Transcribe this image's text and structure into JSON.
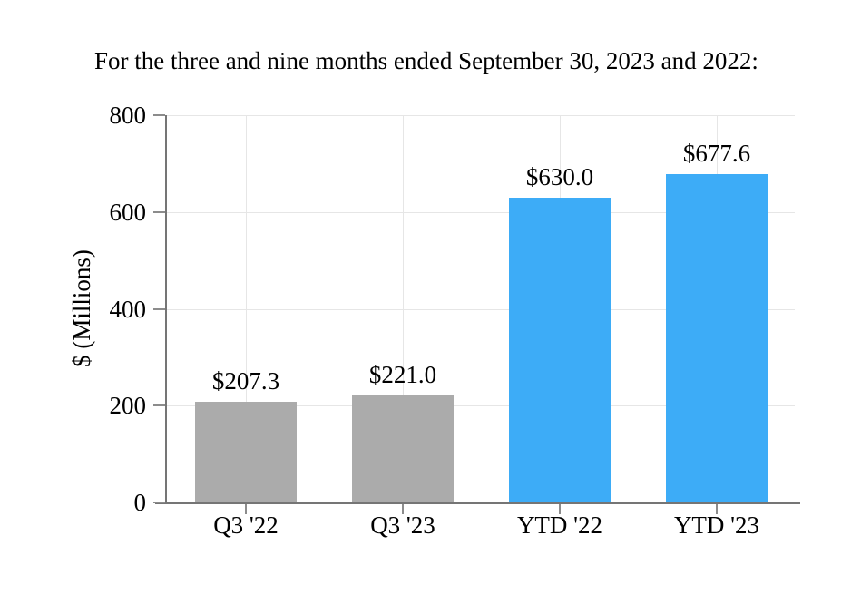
{
  "chart_data": {
    "type": "bar",
    "title": "For the three and nine months ended September 30, 2023 and 2022:",
    "ylabel": "$ (Millions)",
    "xlabel": "",
    "categories": [
      "Q3 '22",
      "Q3 '23",
      "YTD '22",
      "YTD '23"
    ],
    "values": [
      207.3,
      221.0,
      630.0,
      677.6
    ],
    "bar_labels": [
      "$207.3",
      "$221.0",
      "$630.0",
      "$677.6"
    ],
    "bar_colors": [
      "#ABABAB",
      "#ABABAB",
      "#3DACF7",
      "#3DACF7"
    ],
    "ylim": [
      0,
      800
    ],
    "yticks": [
      0,
      200,
      400,
      600,
      800
    ],
    "grid": true,
    "legend": false,
    "grid_color": "#E6E6E6",
    "axis_color": "#757575",
    "tick_color": "#8C8C8C",
    "background_color": "#FFFFFF"
  }
}
